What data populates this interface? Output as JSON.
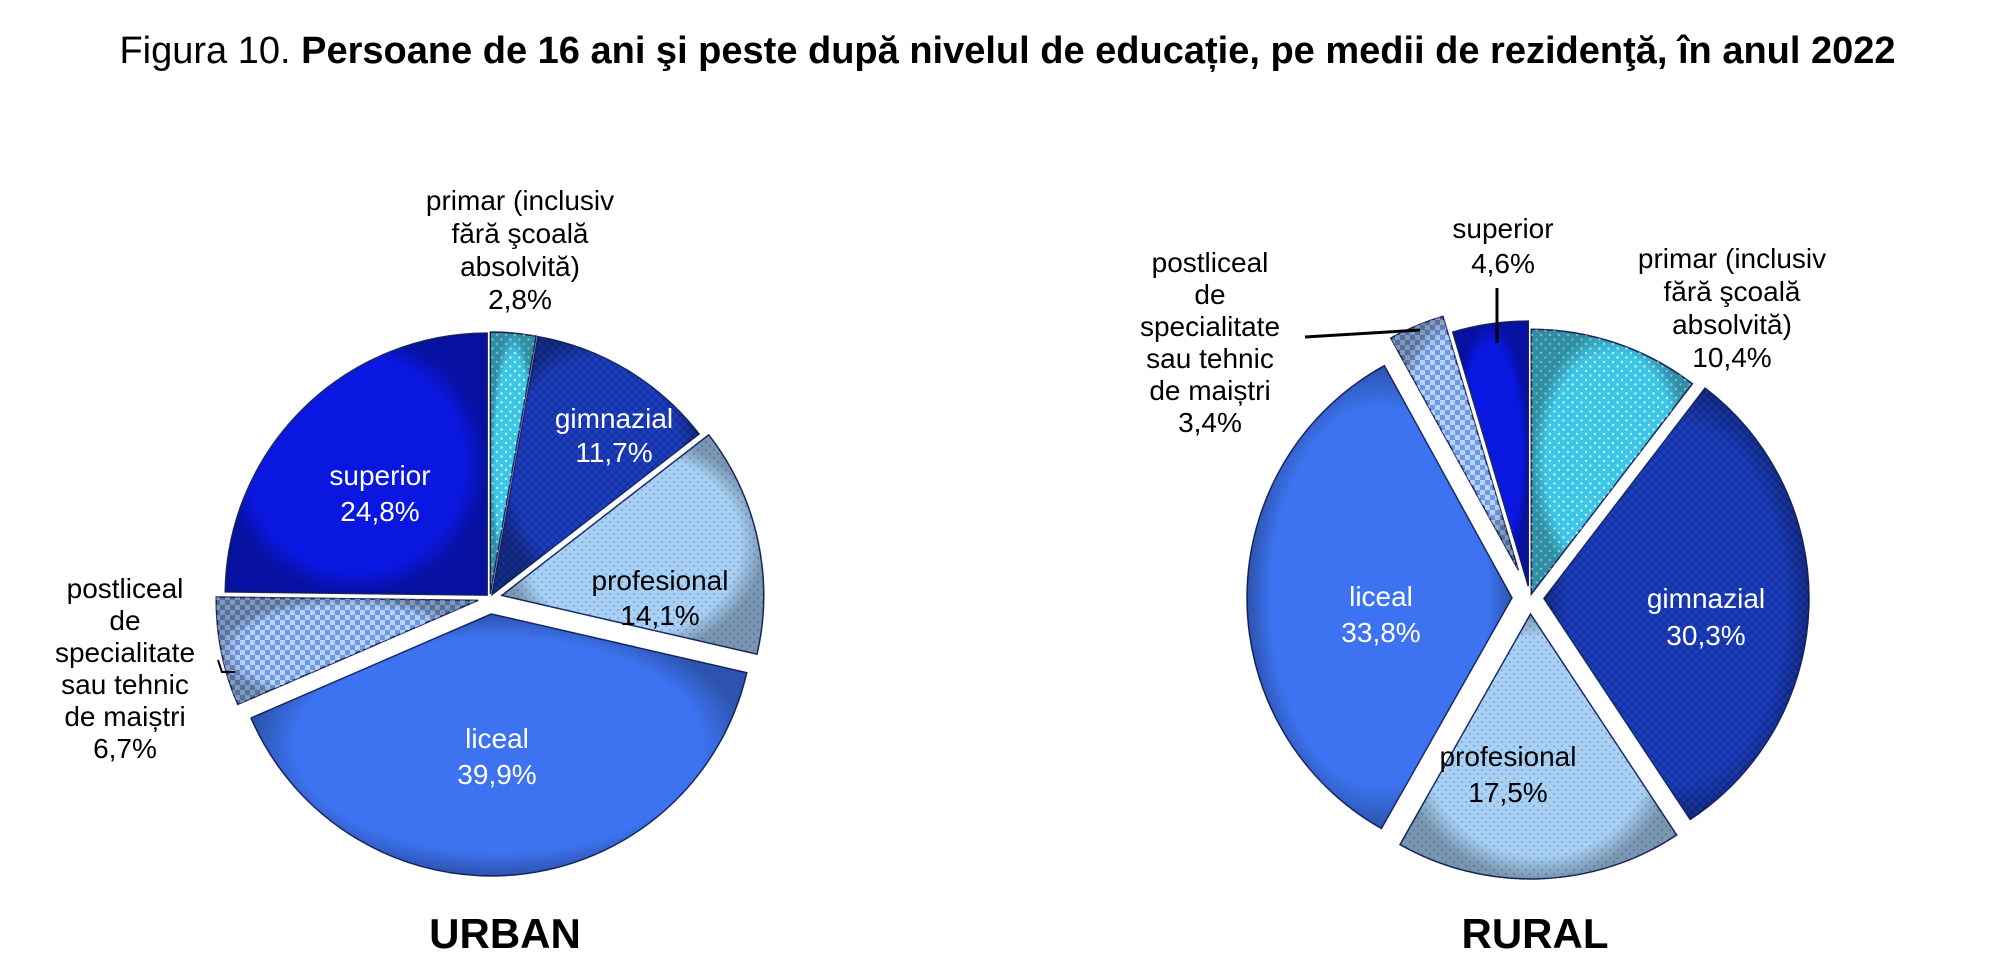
{
  "figure": {
    "prefix": "Figura 10.",
    "title": "Persoane de 16 ani şi peste după nivelul de educație, pe medii de rezidenţă, în anul 2022"
  },
  "chart_data": [
    {
      "type": "pie",
      "title": "URBAN",
      "slices": [
        {
          "id": "primar",
          "label": "primar (inclusiv fără şcoală absolvită)",
          "value": 2.8,
          "value_text": "2,8%",
          "color": "#3cc6e6"
        },
        {
          "id": "gimnazial",
          "label": "gimnazial",
          "value": 11.7,
          "value_text": "11,7%",
          "color": "#1c3fbf"
        },
        {
          "id": "profesional",
          "label": "profesional",
          "value": 14.1,
          "value_text": "14,1%",
          "color": "#a9d1f5"
        },
        {
          "id": "liceal",
          "label": "liceal",
          "value": 39.9,
          "value_text": "39,9%",
          "color": "#3d73f0"
        },
        {
          "id": "postliceal",
          "label": "postliceal de specialitate sau tehnic de maiștri",
          "value": 6.7,
          "value_text": "6,7%",
          "color": "#6b9be6"
        },
        {
          "id": "superior",
          "label": "superior",
          "value": 24.8,
          "value_text": "24,8%",
          "color": "#0a17e0"
        }
      ]
    },
    {
      "type": "pie",
      "title": "RURAL",
      "slices": [
        {
          "id": "primar",
          "label": "primar (inclusiv fără şcoală absolvită)",
          "value": 10.4,
          "value_text": "10,4%",
          "color": "#3cc6e6"
        },
        {
          "id": "gimnazial",
          "label": "gimnazial",
          "value": 30.3,
          "value_text": "30,3%",
          "color": "#1c3fbf"
        },
        {
          "id": "profesional",
          "label": "profesional",
          "value": 17.5,
          "value_text": "17,5%",
          "color": "#a9d1f5"
        },
        {
          "id": "liceal",
          "label": "liceal",
          "value": 33.8,
          "value_text": "33,8%",
          "color": "#3d73f0"
        },
        {
          "id": "postliceal",
          "label": "postliceal de specialitate sau tehnic de maiștri",
          "value": 3.4,
          "value_text": "3,4%",
          "color": "#6b9be6"
        },
        {
          "id": "superior",
          "label": "superior",
          "value": 4.6,
          "value_text": "4,6%",
          "color": "#0a17e0"
        }
      ]
    }
  ]
}
